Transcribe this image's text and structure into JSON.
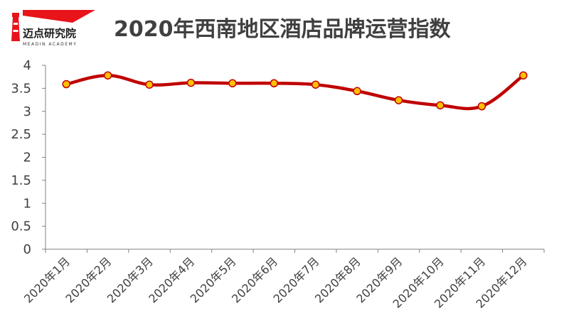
{
  "logo": {
    "name_cn": "迈点研究院",
    "name_en": "MEADIN ACADEMY"
  },
  "chart_data": {
    "type": "line",
    "title": "2020年西南地区酒店品牌运营指数",
    "categories": [
      "2020年1月",
      "2020年2月",
      "2020年3月",
      "2020年4月",
      "2020年5月",
      "2020年6月",
      "2020年7月",
      "2020年8月",
      "2020年9月",
      "2020年10月",
      "2020年11月",
      "2020年12月"
    ],
    "values": [
      3.59,
      3.78,
      3.58,
      3.62,
      3.61,
      3.61,
      3.58,
      3.44,
      3.24,
      3.13,
      3.11,
      3.78
    ],
    "ylim": [
      0,
      4
    ],
    "yticks": [
      "0",
      "0.5",
      "1",
      "1.5",
      "2",
      "2.5",
      "3",
      "3.5",
      "4"
    ],
    "grid": false,
    "legend": "none",
    "colors": {
      "line": "#c00000",
      "marker_fill": "#ffc000",
      "marker_edge": "#c00000",
      "axis": "#808080",
      "logo_red": "#e8141a"
    }
  }
}
